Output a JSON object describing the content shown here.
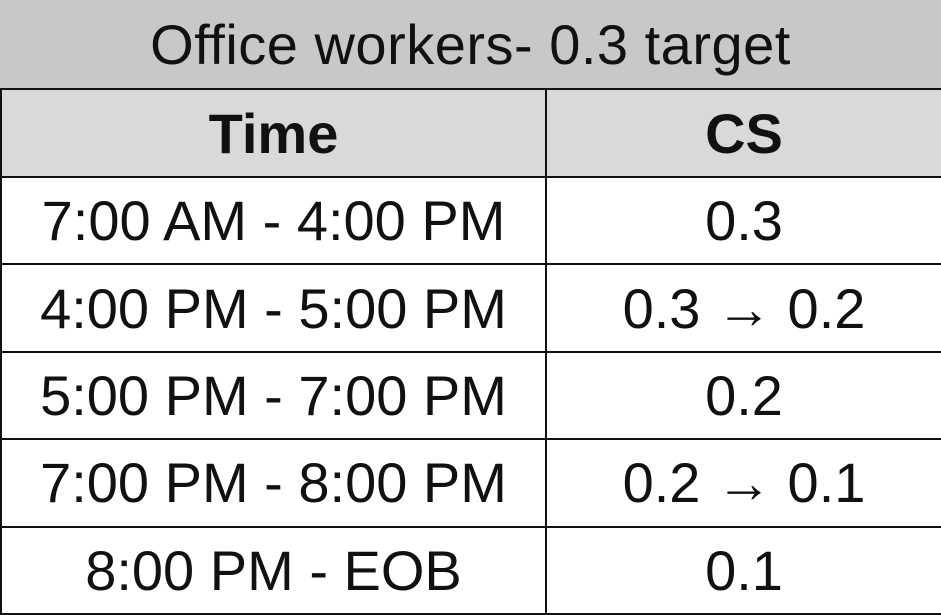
{
  "title": "Office workers- 0.3 target",
  "headers": {
    "time": "Time",
    "cs": "CS"
  },
  "rows": [
    {
      "time": "7:00 AM - 4:00 PM",
      "cs": "0.3"
    },
    {
      "time": "4:00 PM - 5:00 PM",
      "cs": "0.3 → 0.2"
    },
    {
      "time": "5:00 PM - 7:00 PM",
      "cs": "0.2"
    },
    {
      "time": "7:00 PM - 8:00 PM",
      "cs": "0.2 → 0.1"
    },
    {
      "time": "8:00 PM - EOB",
      "cs": "0.1"
    }
  ],
  "colors": {
    "title_background": "#c8c8c8",
    "header_background": "#d9d9d9",
    "border": "#111111"
  }
}
